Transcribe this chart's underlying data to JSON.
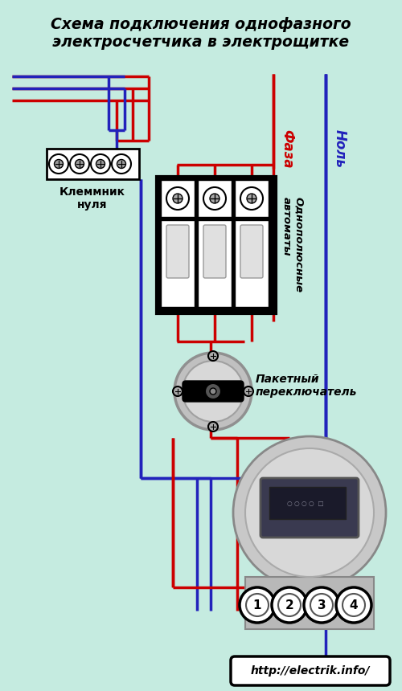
{
  "title": "Схема подключения однофазного\nэлектросчетчика в электрощитке",
  "bg_color": "#c5ebe0",
  "phase_color": "#cc0000",
  "neutral_color": "#2222bb",
  "text_color": "#000000",
  "url_text": "http://electrik.info/",
  "label_faza": "Фаза",
  "label_nol": "Ноль",
  "label_klemm": "Клеммник\nнуля",
  "label_avtomat": "Однополюсные\nавтоматы",
  "label_packet": "Пакетный\nпереключатель",
  "lw_main": 2.5,
  "lw_border": 2.0
}
